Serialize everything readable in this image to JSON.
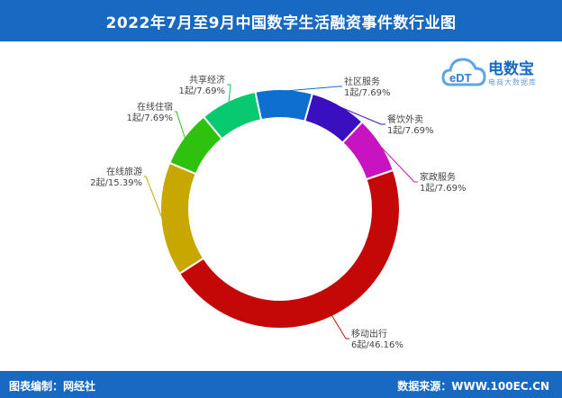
{
  "header": {
    "title": "2022年7月至9月中国数字生活融资事件数行业图"
  },
  "logo": {
    "brand": "电数宝",
    "sub": "电商大数据库",
    "mark": "eDT"
  },
  "footer": {
    "left": "图表编制：网经社",
    "right": "数据来源：WWW.100EC.CN"
  },
  "chart_data": {
    "type": "pie",
    "variant": "donut",
    "title": "2022年7月至9月中国数字生活融资事件数行业图",
    "slices": [
      {
        "name": "社区服务",
        "value": 1,
        "label": "1起/7.69%",
        "color": "#0f6fd0"
      },
      {
        "name": "餐饮外卖",
        "value": 1,
        "label": "1起/7.69%",
        "color": "#3a0fc0"
      },
      {
        "name": "家政服务",
        "value": 1,
        "label": "1起/7.69%",
        "color": "#c814c0"
      },
      {
        "name": "移动出行",
        "value": 6,
        "label": "6起/46.16%",
        "color": "#c40808"
      },
      {
        "name": "在线旅游",
        "value": 2,
        "label": "2起/15.39%",
        "color": "#c8a800"
      },
      {
        "name": "在线住宿",
        "value": 1,
        "label": "1起/7.69%",
        "color": "#2ec20f"
      },
      {
        "name": "共享经济",
        "value": 1,
        "label": "1起/7.69%",
        "color": "#08c870"
      }
    ]
  }
}
